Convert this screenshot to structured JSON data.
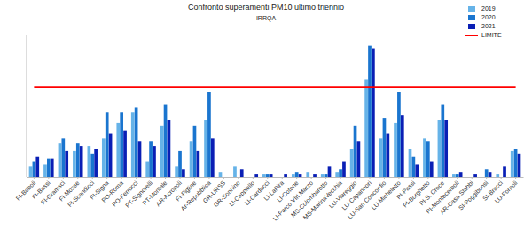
{
  "chart_data": {
    "type": "bar",
    "title": "Confronto superamenti PM10 ultimo triennio",
    "subtitle": "IRRQA",
    "categories": [
      "FI-Boboli",
      "FI-Bassi",
      "FI-Gramsci",
      "FI-Mosse",
      "FI-Scandicci",
      "FI-Signa",
      "PO-Roma",
      "PO-Ferrucci",
      "PT-Signorelli",
      "PT-Montale",
      "AR-Acropoli",
      "FI-Figline",
      "Ar-Repubblica",
      "GR-URSS",
      "GR-Sonnino",
      "LI-Cappiello",
      "LI-Carducci",
      "LI-LaPira",
      "LI-Cotone",
      "LI-Parco VIII Marzo",
      "MS-Colombarotto",
      "MS-MarinaVecchia",
      "LU-Viareggio",
      "LU-Capannori",
      "LU-San Concordio",
      "LU-Micheletto",
      "PI-Passi",
      "PI-Borghetto",
      "PI-S. Croce",
      "PI-Montecerboli",
      "AR-Casa Stabbi",
      "SI-Poggibonsi",
      "SI-Bracci",
      "LU-Fornoli"
    ],
    "series": [
      {
        "name": "2019",
        "color": "#66b3e8",
        "values": [
          4,
          5,
          13,
          10,
          12,
          15,
          21,
          25,
          6,
          20,
          4,
          14,
          22,
          2,
          4,
          0,
          1,
          0,
          1,
          2,
          1,
          2,
          11,
          38,
          15,
          21,
          11,
          15,
          22,
          1,
          0,
          0,
          1,
          10
        ]
      },
      {
        "name": "2020",
        "color": "#1a75cf",
        "values": [
          6,
          7,
          15,
          13,
          9,
          25,
          25,
          27,
          14,
          28,
          10,
          20,
          33,
          0,
          0,
          0,
          1,
          0,
          2,
          0,
          1,
          3,
          20,
          51,
          23,
          33,
          8,
          14,
          28,
          1,
          0,
          3,
          0,
          11
        ]
      },
      {
        "name": "2021",
        "color": "#0a1fb5",
        "values": [
          8,
          7,
          10,
          12,
          11,
          17,
          18,
          14,
          12,
          22,
          3,
          10,
          15,
          0,
          3,
          1,
          1,
          1,
          1,
          1,
          4,
          6,
          14,
          50,
          17,
          24,
          5,
          6,
          22,
          2,
          1,
          2,
          4,
          9
        ]
      },
      {
        "name": "LIMITE",
        "type": "line",
        "color": "#ff0000",
        "values": [
          35,
          35,
          35,
          35,
          35,
          35,
          35,
          35,
          35,
          35,
          35,
          35,
          35,
          35,
          35,
          35,
          35,
          35,
          35,
          35,
          35,
          35,
          35,
          35,
          35,
          35,
          35,
          35,
          35,
          35,
          35,
          35,
          35,
          35
        ]
      }
    ],
    "ylim": [
      0,
      55
    ],
    "tick_labels": "x",
    "grid": false,
    "legend": "top-right"
  }
}
